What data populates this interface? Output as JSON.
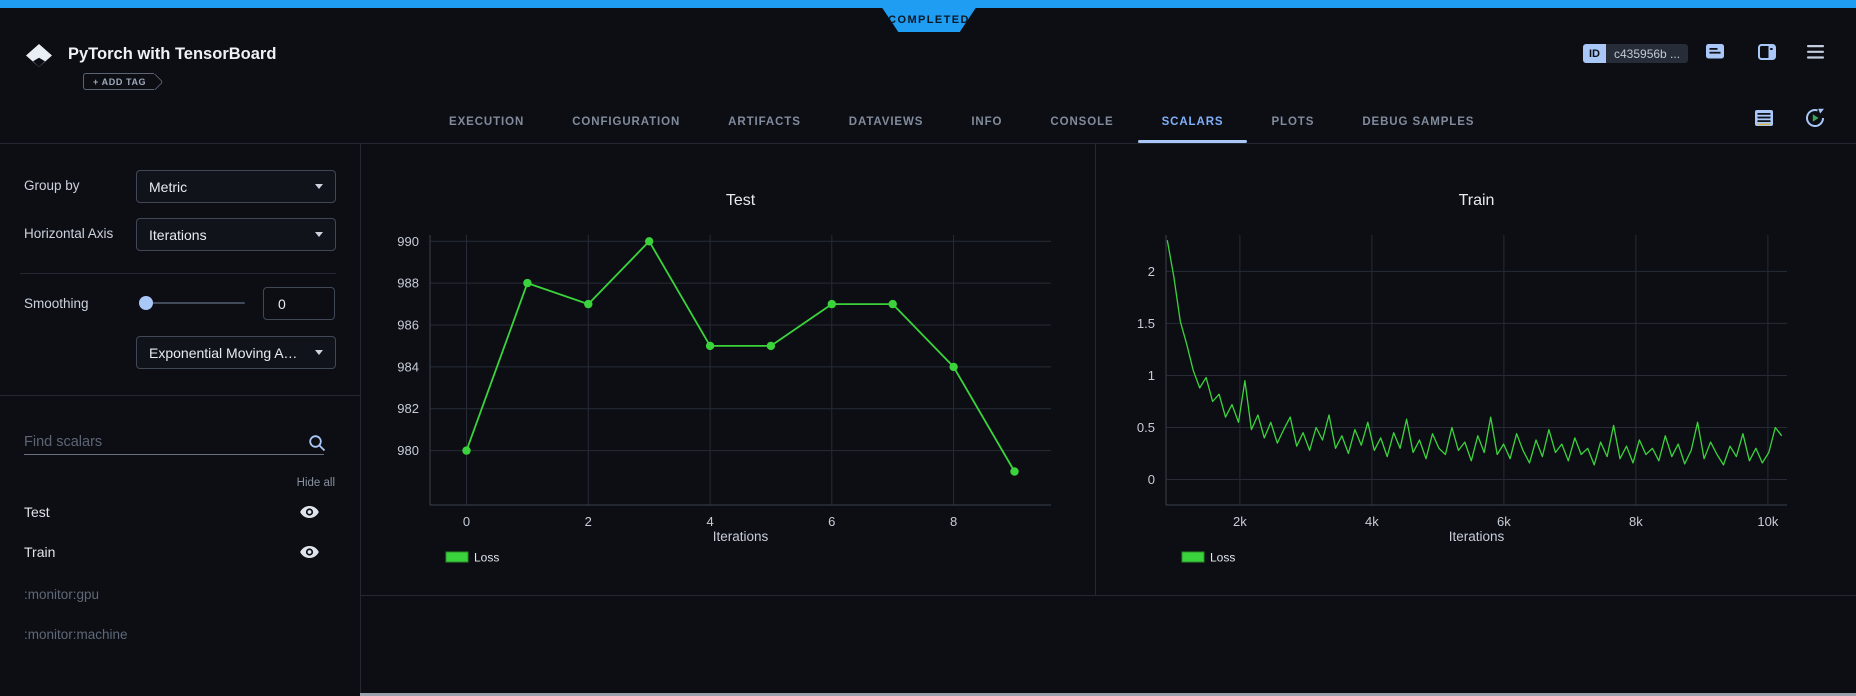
{
  "status_bar": {
    "state": "COMPLETED"
  },
  "header": {
    "title": "PyTorch with TensorBoard",
    "add_tag_label": "+ ADD TAG",
    "id_label": "ID",
    "id_value": "c435956b ...",
    "icons": [
      "comment-icon",
      "side-panel-icon",
      "menu-icon"
    ]
  },
  "tabs": {
    "items": [
      "EXECUTION",
      "CONFIGURATION",
      "ARTIFACTS",
      "DATAVIEWS",
      "INFO",
      "CONSOLE",
      "SCALARS",
      "PLOTS",
      "DEBUG SAMPLES"
    ],
    "active": "SCALARS",
    "right_icons": [
      "table-view-icon",
      "auto-refresh-icon"
    ]
  },
  "sidebar": {
    "group_by_label": "Group by",
    "group_by_value": "Metric",
    "horizontal_axis_label": "Horizontal Axis",
    "horizontal_axis_value": "Iterations",
    "smoothing_label": "Smoothing",
    "smoothing_value": "0",
    "smoothing_type_value": "Exponential Moving Av...",
    "search_placeholder": "Find scalars",
    "hide_all_label": "Hide all",
    "metrics": [
      {
        "label": "Test",
        "eye": true,
        "dim": false
      },
      {
        "label": "Train",
        "eye": true,
        "dim": false
      },
      {
        "label": ":monitor:gpu",
        "eye": false,
        "dim": true
      },
      {
        "label": ":monitor:machine",
        "eye": false,
        "dim": true
      }
    ]
  },
  "colors": {
    "accent_blue": "#1e9df2",
    "light_blue": "#a9c7f7",
    "series_green": "#3bd33b",
    "grid": "#262b35",
    "axis_line": "#3a404c"
  },
  "chart_data": [
    {
      "type": "line",
      "title": "Test",
      "xlabel": "Iterations",
      "legend": [
        "Loss"
      ],
      "color": "#3bd33b",
      "markers": true,
      "x": [
        0,
        1,
        2,
        3,
        4,
        5,
        6,
        7,
        8,
        9
      ],
      "y": [
        980,
        988,
        987,
        990,
        985,
        985,
        987,
        987,
        984,
        979
      ],
      "xlim": [
        -0.6,
        9.6
      ],
      "ylim": [
        977.4,
        990.3
      ],
      "xticks": [
        {
          "v": 0,
          "label": "0"
        },
        {
          "v": 2,
          "label": "2"
        },
        {
          "v": 4,
          "label": "4"
        },
        {
          "v": 6,
          "label": "6"
        },
        {
          "v": 8,
          "label": "8"
        }
      ],
      "yticks": [
        {
          "v": 980,
          "label": "980"
        },
        {
          "v": 982,
          "label": "982"
        },
        {
          "v": 984,
          "label": "984"
        },
        {
          "v": 986,
          "label": "986"
        },
        {
          "v": 988,
          "label": "988"
        },
        {
          "v": 990,
          "label": "990"
        }
      ]
    },
    {
      "type": "line",
      "title": "Train",
      "xlabel": "Iterations",
      "legend": [
        "Loss"
      ],
      "color": "#3bd33b",
      "markers": false,
      "x_start": 900,
      "x_step": 98,
      "y": [
        2.3,
        1.95,
        1.52,
        1.3,
        1.05,
        0.88,
        0.98,
        0.75,
        0.82,
        0.6,
        0.72,
        0.55,
        0.95,
        0.48,
        0.62,
        0.4,
        0.55,
        0.35,
        0.48,
        0.6,
        0.32,
        0.45,
        0.28,
        0.5,
        0.38,
        0.62,
        0.3,
        0.42,
        0.25,
        0.48,
        0.33,
        0.55,
        0.28,
        0.4,
        0.22,
        0.45,
        0.3,
        0.58,
        0.26,
        0.38,
        0.2,
        0.44,
        0.3,
        0.24,
        0.5,
        0.28,
        0.36,
        0.18,
        0.42,
        0.26,
        0.6,
        0.24,
        0.34,
        0.2,
        0.44,
        0.28,
        0.16,
        0.38,
        0.22,
        0.48,
        0.26,
        0.34,
        0.18,
        0.4,
        0.24,
        0.3,
        0.14,
        0.36,
        0.22,
        0.52,
        0.2,
        0.32,
        0.16,
        0.38,
        0.24,
        0.3,
        0.18,
        0.42,
        0.22,
        0.34,
        0.15,
        0.28,
        0.55,
        0.2,
        0.36,
        0.24,
        0.14,
        0.32,
        0.22,
        0.44,
        0.18,
        0.3,
        0.16,
        0.26,
        0.5,
        0.42
      ],
      "xlim": [
        880,
        10290
      ],
      "ylim": [
        -0.245,
        2.35
      ],
      "xticks": [
        {
          "v": 2000,
          "label": "2k"
        },
        {
          "v": 4000,
          "label": "4k"
        },
        {
          "v": 6000,
          "label": "6k"
        },
        {
          "v": 8000,
          "label": "8k"
        },
        {
          "v": 10000,
          "label": "10k"
        }
      ],
      "yticks": [
        {
          "v": 0,
          "label": "0"
        },
        {
          "v": 0.5,
          "label": "0.5"
        },
        {
          "v": 1,
          "label": "1"
        },
        {
          "v": 1.5,
          "label": "1.5"
        },
        {
          "v": 2,
          "label": "2"
        }
      ]
    }
  ]
}
